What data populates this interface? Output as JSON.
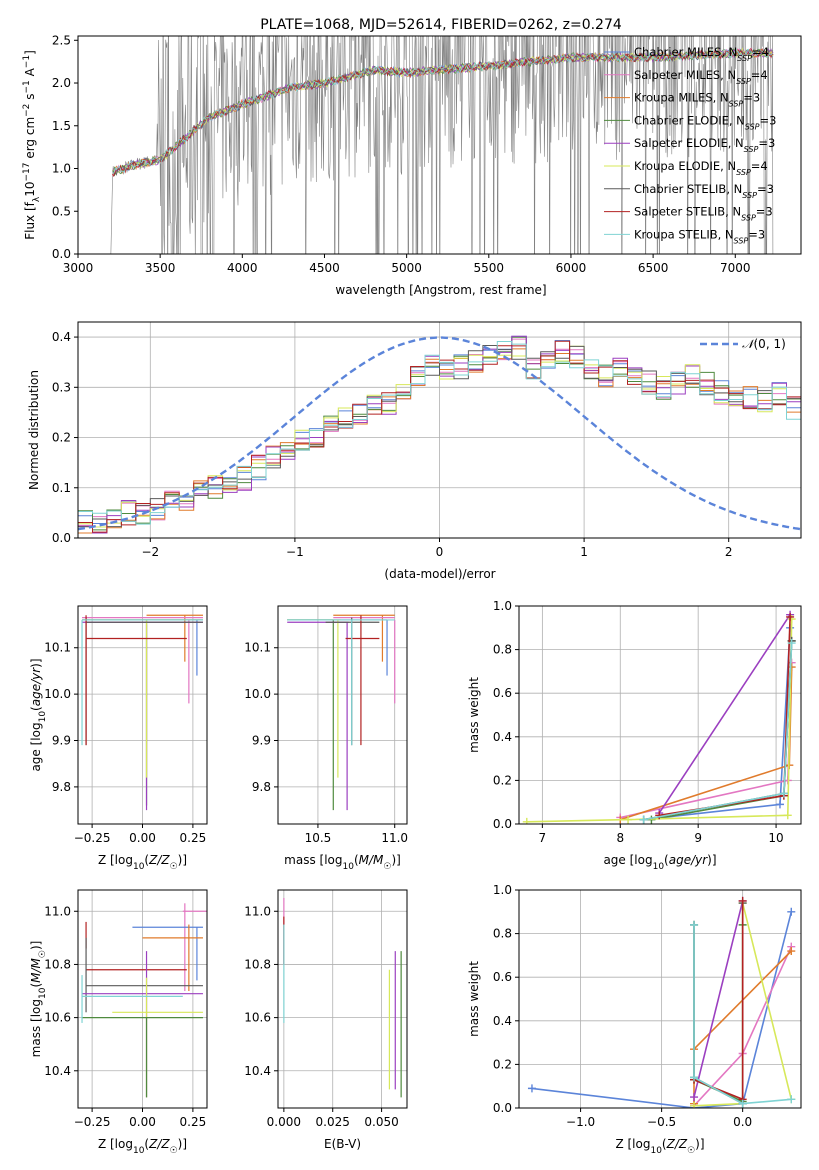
{
  "colors": {
    "chabrier_miles": "#5b84d9",
    "salpeter_miles": "#e377c2",
    "kroupa_miles": "#e07b2c",
    "chabrier_elodie": "#4f8a3e",
    "salpeter_elodie": "#9b3fc0",
    "kroupa_elodie": "#d7e85a",
    "chabrier_stelib": "#5a5a5a",
    "salpeter_stelib": "#b22222",
    "kroupa_stelib": "#7fd3d3",
    "data": "#808080",
    "grid": "#b0b0b0"
  },
  "chart_data": [
    {
      "id": "spectrum",
      "type": "line",
      "title": "PLATE=1068, MJD=52614, FIBERID=0262, z=0.274",
      "xlabel": "wavelength [Angstrom, rest frame]",
      "ylabel": "Flux [f_λ 10^-17 erg cm^-2 s^-1 A^-1]",
      "xlim": [
        3000,
        7400
      ],
      "ylim": [
        0,
        2.55
      ],
      "xticks": [
        3000,
        3500,
        4000,
        4500,
        5000,
        5500,
        6000,
        6500,
        7000
      ],
      "yticks": [
        0.0,
        0.5,
        1.0,
        1.5,
        2.0,
        2.5
      ],
      "grid": false,
      "legend_position": "top-right",
      "legend": [
        {
          "label": "Chabrier MILES, N_SSP=4",
          "color": "#5b84d9"
        },
        {
          "label": "Salpeter MILES, N_SSP=4",
          "color": "#e377c2"
        },
        {
          "label": "Kroupa MILES, N_SSP=3",
          "color": "#e07b2c"
        },
        {
          "label": "Chabrier ELODIE, N_SSP=3",
          "color": "#4f8a3e"
        },
        {
          "label": "Salpeter ELODIE, N_SSP=3",
          "color": "#9b3fc0"
        },
        {
          "label": "Kroupa ELODIE, N_SSP=4",
          "color": "#d7e85a"
        },
        {
          "label": "Chabrier STELIB, N_SSP=3",
          "color": "#5a5a5a"
        },
        {
          "label": "Salpeter STELIB, N_SSP=3",
          "color": "#b22222"
        },
        {
          "label": "Kroupa STELIB, N_SSP=3",
          "color": "#7fd3d3"
        }
      ],
      "continuum_x": [
        3200,
        3350,
        3500,
        3800,
        4000,
        4300,
        4500,
        4800,
        5000,
        5500,
        6000,
        6500,
        7000,
        7200
      ],
      "continuum_y": [
        0.95,
        1.05,
        1.1,
        1.6,
        1.75,
        1.95,
        2.0,
        2.15,
        2.12,
        2.2,
        2.3,
        2.3,
        2.35,
        2.35
      ]
    },
    {
      "id": "residuals",
      "type": "line",
      "xlabel": "(data-model)/error",
      "ylabel": "Normed distribution",
      "xlim": [
        -2.5,
        2.5
      ],
      "ylim": [
        0,
        0.43
      ],
      "xticks": [
        -2,
        -1,
        0,
        1,
        2
      ],
      "yticks": [
        0.0,
        0.1,
        0.2,
        0.3,
        0.4
      ],
      "grid": true,
      "legend_position": "top-right",
      "legend": [
        {
          "label": "N(0,1)",
          "color": "#5b84d9",
          "style": "dashed"
        }
      ],
      "bin_width": 0.1,
      "x_start": -2.5,
      "base_values": [
        0.03,
        0.03,
        0.04,
        0.05,
        0.05,
        0.06,
        0.07,
        0.08,
        0.09,
        0.1,
        0.11,
        0.12,
        0.14,
        0.16,
        0.17,
        0.19,
        0.2,
        0.22,
        0.24,
        0.25,
        0.26,
        0.27,
        0.3,
        0.32,
        0.34,
        0.33,
        0.34,
        0.35,
        0.36,
        0.37,
        0.38,
        0.34,
        0.36,
        0.37,
        0.36,
        0.33,
        0.32,
        0.34,
        0.32,
        0.31,
        0.3,
        0.31,
        0.32,
        0.31,
        0.29,
        0.28,
        0.28,
        0.27,
        0.29,
        0.26,
        0.25,
        0.24,
        0.23,
        0.21,
        0.2,
        0.19,
        0.17,
        0.16,
        0.15,
        0.14,
        0.13,
        0.12,
        0.11,
        0.09,
        0.08,
        0.08,
        0.07,
        0.07,
        0.06,
        0.06,
        0.05,
        0.05,
        0.05,
        0.04,
        0.04,
        0.04,
        0.04,
        0.05,
        0.05,
        0.05
      ]
    },
    {
      "id": "age_vs_Z",
      "type": "scatter",
      "xlabel": "Z [log10(Z/Z☉)]",
      "ylabel": "age  [log10(age/yr)]",
      "xlim": [
        -0.32,
        0.32
      ],
      "ylim": [
        9.72,
        10.19
      ],
      "xticks": [
        -0.25,
        0.0,
        0.25
      ],
      "xticklabels": [
        "−0.25",
        "0.00",
        "0.25"
      ],
      "yticks": [
        9.8,
        9.9,
        10.0,
        10.1
      ],
      "grid": true
    },
    {
      "id": "age_vs_mass",
      "type": "scatter",
      "xlabel": "mass [log10(M/M☉)]",
      "xlim": [
        10.24,
        11.08
      ],
      "ylim": [
        9.72,
        10.19
      ],
      "xticks": [
        10.5,
        11.0
      ],
      "xticklabels": [
        "10.5",
        "11.0"
      ],
      "yticks": [
        9.8,
        9.9,
        10.0,
        10.1
      ],
      "grid": true
    },
    {
      "id": "weight_vs_age",
      "type": "line",
      "xlabel": "age  [log10(age/yr)]",
      "ylabel": "mass weight",
      "xlim": [
        6.7,
        10.32
      ],
      "ylim": [
        0,
        1.0
      ],
      "xticks": [
        7,
        8,
        9,
        10
      ],
      "yticks": [
        0.0,
        0.2,
        0.4,
        0.6,
        0.8,
        1.0
      ],
      "grid": true,
      "series": [
        {
          "color": "#5b84d9",
          "x": [
            8.3,
            10.05,
            10.18
          ],
          "y": [
            0.02,
            0.09,
            0.9
          ]
        },
        {
          "color": "#e377c2",
          "x": [
            8.0,
            10.15,
            10.2
          ],
          "y": [
            0.03,
            0.2,
            0.74
          ]
        },
        {
          "color": "#e07b2c",
          "x": [
            8.0,
            10.17,
            10.2
          ],
          "y": [
            0.02,
            0.27,
            0.72
          ]
        },
        {
          "color": "#4f8a3e",
          "x": [
            8.4,
            10.1,
            10.2
          ],
          "y": [
            0.02,
            0.13,
            0.84
          ]
        },
        {
          "color": "#9b3fc0",
          "x": [
            8.5,
            10.18
          ],
          "y": [
            0.05,
            0.96
          ]
        },
        {
          "color": "#d7e85a",
          "x": [
            6.8,
            8.1,
            10.15,
            10.2
          ],
          "y": [
            0.01,
            0.02,
            0.04,
            0.94
          ]
        },
        {
          "color": "#5a5a5a",
          "x": [
            8.3,
            10.1,
            10.2
          ],
          "y": [
            0.02,
            0.14,
            0.84
          ]
        },
        {
          "color": "#b22222",
          "x": [
            8.5,
            10.1,
            10.18
          ],
          "y": [
            0.04,
            0.13,
            0.95
          ]
        },
        {
          "color": "#7fd3d3",
          "x": [
            8.3,
            10.1,
            10.2
          ],
          "y": [
            0.02,
            0.14,
            0.83
          ]
        }
      ]
    },
    {
      "id": "mass_vs_Z",
      "type": "scatter",
      "xlabel": "Z [log10(Z/Z☉)]",
      "ylabel": "mass [log10(M/M☉)]",
      "xlim": [
        -0.32,
        0.32
      ],
      "ylim": [
        10.26,
        11.08
      ],
      "xticks": [
        -0.25,
        0.0,
        0.25
      ],
      "xticklabels": [
        "−0.25",
        "0.00",
        "0.25"
      ],
      "yticks": [
        10.4,
        10.6,
        10.8,
        11.0
      ],
      "grid": true
    },
    {
      "id": "mass_vs_ebv",
      "type": "scatter",
      "xlabel": "E(B-V)",
      "xlim": [
        -0.003,
        0.063
      ],
      "ylim": [
        10.26,
        11.08
      ],
      "xticks": [
        0.0,
        0.025,
        0.05
      ],
      "xticklabels": [
        "0.000",
        "0.025",
        "0.050"
      ],
      "yticks": [
        10.4,
        10.6,
        10.8,
        11.0
      ],
      "grid": true
    },
    {
      "id": "weight_vs_Z",
      "type": "line",
      "xlabel": "Z [log10(Z/Z☉)]",
      "ylabel": "mass weight",
      "xlim": [
        -1.38,
        0.36
      ],
      "ylim": [
        0,
        1.0
      ],
      "xticks": [
        -1.0,
        -0.5,
        0.0
      ],
      "xticklabels": [
        "−1.0",
        "−0.5",
        "0.0"
      ],
      "yticks": [
        0.0,
        0.2,
        0.4,
        0.6,
        0.8,
        1.0
      ],
      "grid": true,
      "series": [
        {
          "color": "#5b84d9",
          "x": [
            -1.3,
            -0.3,
            0.0,
            0.3
          ],
          "y": [
            0.09,
            0.0,
            0.02,
            0.9
          ]
        },
        {
          "color": "#e377c2",
          "x": [
            -0.3,
            0.0,
            0.3
          ],
          "y": [
            0.01,
            0.25,
            0.74
          ]
        },
        {
          "color": "#e07b2c",
          "x": [
            -0.3,
            -0.3,
            0.3
          ],
          "y": [
            0.02,
            0.27,
            0.72
          ]
        },
        {
          "color": "#4f8a3e",
          "x": [
            -0.3,
            -0.3,
            0.0,
            0.0
          ],
          "y": [
            0.84,
            0.13,
            0.03,
            0.84
          ]
        },
        {
          "color": "#9b3fc0",
          "x": [
            -0.3,
            0.0
          ],
          "y": [
            0.05,
            0.95
          ]
        },
        {
          "color": "#d7e85a",
          "x": [
            -0.3,
            0.0,
            0.0,
            0.3
          ],
          "y": [
            0.01,
            0.02,
            0.94,
            0.04
          ]
        },
        {
          "color": "#5a5a5a",
          "x": [
            -0.3,
            -0.3,
            0.0,
            0.0
          ],
          "y": [
            0.84,
            0.14,
            0.02,
            0.94
          ]
        },
        {
          "color": "#b22222",
          "x": [
            -0.3,
            0.0,
            0.0
          ],
          "y": [
            0.13,
            0.04,
            0.95
          ]
        },
        {
          "color": "#7fd3d3",
          "x": [
            -0.3,
            -0.3,
            0.0,
            0.3
          ],
          "y": [
            0.84,
            0.14,
            0.02,
            0.04
          ]
        }
      ]
    }
  ]
}
